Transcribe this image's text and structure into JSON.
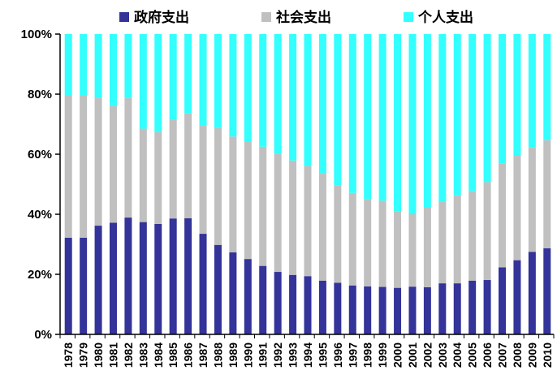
{
  "chart_data": {
    "type": "bar",
    "stacked": true,
    "percent": true,
    "legend_position": "top",
    "grid": false,
    "ylim": [
      0,
      100
    ],
    "yticks": [
      "0%",
      "20%",
      "40%",
      "60%",
      "80%",
      "100%"
    ],
    "categories": [
      "1978",
      "1979",
      "1980",
      "1981",
      "1982",
      "1983",
      "1984",
      "1985",
      "1986",
      "1987",
      "1988",
      "1989",
      "1990",
      "1991",
      "1992",
      "1993",
      "1994",
      "1995",
      "1996",
      "1997",
      "1998",
      "1999",
      "2000",
      "2001",
      "2002",
      "2003",
      "2004",
      "2005",
      "2006",
      "2007",
      "2008",
      "2009",
      "2010"
    ],
    "series": [
      {
        "name": "政府支出",
        "color": "#333399",
        "values": [
          32.2,
          32.2,
          36.2,
          37.2,
          38.9,
          37.4,
          36.8,
          38.6,
          38.7,
          33.5,
          29.8,
          27.3,
          25.1,
          22.8,
          20.8,
          19.8,
          19.4,
          17.9,
          17.2,
          16.3,
          16.0,
          15.8,
          15.5,
          15.9,
          15.7,
          17.0,
          17.0,
          17.9,
          18.1,
          22.3,
          24.7,
          27.5,
          28.7
        ]
      },
      {
        "name": "社会支出",
        "color": "#c0c0c0",
        "values": [
          47.4,
          47.4,
          42.6,
          38.9,
          39.8,
          31.1,
          30.6,
          33.0,
          34.9,
          36.2,
          38.9,
          38.6,
          39.2,
          39.7,
          39.3,
          38.1,
          36.7,
          35.6,
          32.3,
          30.8,
          29.1,
          28.7,
          25.5,
          24.1,
          26.6,
          27.2,
          29.3,
          29.9,
          32.6,
          34.5,
          34.9,
          34.7,
          36.0
        ]
      },
      {
        "name": "个人支出",
        "color": "#33ffff",
        "values": [
          20.4,
          20.4,
          21.2,
          23.9,
          21.3,
          31.5,
          32.6,
          28.4,
          26.4,
          30.3,
          31.3,
          34.1,
          35.7,
          37.5,
          39.9,
          42.1,
          43.9,
          46.5,
          50.5,
          52.9,
          54.9,
          55.5,
          59.0,
          60.0,
          57.7,
          55.8,
          53.7,
          52.2,
          49.3,
          43.2,
          40.4,
          37.8,
          35.3
        ]
      }
    ]
  }
}
